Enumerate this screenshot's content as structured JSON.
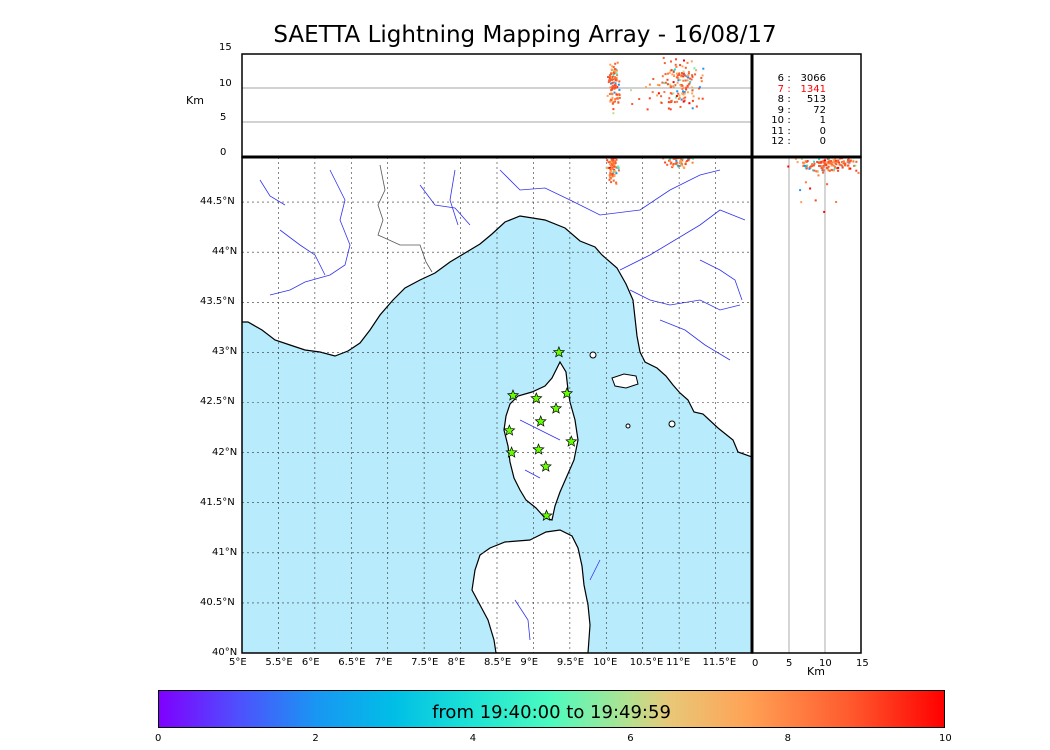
{
  "title": "SAETTA Lightning Mapping Array - 16/08/17",
  "top_panel": {
    "ylabel": "Km",
    "y_ticks": [
      "15",
      "10",
      "5",
      "0"
    ]
  },
  "right_panel": {
    "xlabel": "Km",
    "x_ticks": [
      "0",
      "5",
      "10",
      "15"
    ]
  },
  "map": {
    "lon_ticks": [
      "5°E",
      "5.5°E",
      "6°E",
      "6.5°E",
      "7°E",
      "7.5°E",
      "8°E",
      "8.5°E",
      "9°E",
      "9.5°E",
      "10°E",
      "10.5°E",
      "11°E",
      "11.5°E"
    ],
    "lat_ticks": [
      "44.5°N",
      "44°N",
      "43.5°N",
      "43°N",
      "42.5°N",
      "42°N",
      "41.5°N",
      "41°N",
      "40.5°N",
      "40°N"
    ],
    "lon_range": [
      5,
      12
    ],
    "lat_range": [
      40,
      44.95
    ],
    "sea_color": "#b8ecfd",
    "land_color": "#ffffff",
    "river_color": "#3333ee",
    "station_color": "#66ff00",
    "stations": [
      {
        "lon": 9.35,
        "lat": 43.0
      },
      {
        "lon": 8.72,
        "lat": 42.57
      },
      {
        "lon": 9.04,
        "lat": 42.54
      },
      {
        "lon": 9.46,
        "lat": 42.59
      },
      {
        "lon": 9.31,
        "lat": 42.44
      },
      {
        "lon": 9.1,
        "lat": 42.31
      },
      {
        "lon": 8.67,
        "lat": 42.22
      },
      {
        "lon": 9.52,
        "lat": 42.11
      },
      {
        "lon": 9.07,
        "lat": 42.03
      },
      {
        "lon": 8.7,
        "lat": 42.0
      },
      {
        "lon": 9.17,
        "lat": 41.86
      },
      {
        "lon": 9.18,
        "lat": 41.37
      }
    ]
  },
  "legend_stats": [
    {
      "level": "6",
      "count": "3066",
      "color": "#000000"
    },
    {
      "level": "7",
      "count": "1341",
      "color": "#ff0000"
    },
    {
      "level": "8",
      "count": "513",
      "color": "#000000"
    },
    {
      "level": "9",
      "count": "72",
      "color": "#000000"
    },
    {
      "level": "10",
      "count": "1",
      "color": "#000000"
    },
    {
      "level": "11",
      "count": "0",
      "color": "#000000"
    },
    {
      "level": "12",
      "count": "0",
      "color": "#000000"
    }
  ],
  "colorbar": {
    "label": "from 19:40:00 to 19:49:59",
    "ticks": [
      "0",
      "2",
      "4",
      "6",
      "8",
      "10"
    ]
  }
}
